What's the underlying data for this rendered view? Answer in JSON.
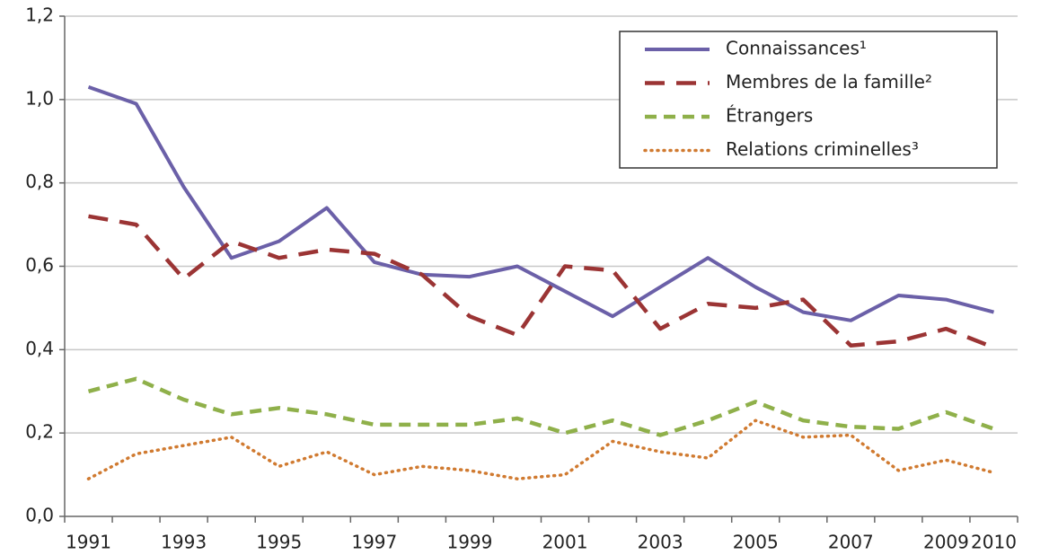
{
  "chart_data": {
    "type": "line",
    "categories": [
      "1991",
      null,
      "1993",
      null,
      "1995",
      null,
      "1997",
      null,
      "1999",
      null,
      "2001",
      null,
      "2003",
      null,
      "2005",
      null,
      "2007",
      null,
      "2009",
      "2010"
    ],
    "series": [
      {
        "name": "Connaissances¹",
        "color": "#6b60a8",
        "dash": "solid",
        "values": [
          1.03,
          0.99,
          0.79,
          0.62,
          0.66,
          0.74,
          0.61,
          0.58,
          0.575,
          0.6,
          0.54,
          0.48,
          0.55,
          0.62,
          0.55,
          0.49,
          0.47,
          0.53,
          0.52,
          0.49
        ]
      },
      {
        "name": "Membres de la famille²",
        "color": "#9b3434",
        "dash": "dashed",
        "values": [
          0.72,
          0.7,
          0.57,
          0.66,
          0.62,
          0.64,
          0.63,
          0.58,
          0.48,
          0.435,
          0.6,
          0.59,
          0.45,
          0.51,
          0.5,
          0.52,
          0.41,
          0.42,
          0.45,
          0.405
        ]
      },
      {
        "name": "Étrangers",
        "color": "#8fb04a",
        "dash": "short-dashed",
        "values": [
          0.3,
          0.33,
          0.28,
          0.245,
          0.26,
          0.245,
          0.22,
          0.22,
          0.22,
          0.235,
          0.2,
          0.23,
          0.195,
          0.23,
          0.275,
          0.23,
          0.215,
          0.21,
          0.25,
          0.21
        ]
      },
      {
        "name": "Relations criminelles³",
        "color": "#d07a30",
        "dash": "dotted",
        "values": [
          0.09,
          0.15,
          0.17,
          0.19,
          0.12,
          0.155,
          0.1,
          0.12,
          0.11,
          0.09,
          0.1,
          0.18,
          0.155,
          0.14,
          0.23,
          0.19,
          0.195,
          0.11,
          0.135,
          0.105
        ]
      }
    ],
    "ylim": [
      0,
      1.2
    ],
    "yticks": [
      {
        "value": 0,
        "label": "0,0"
      },
      {
        "value": 0.2,
        "label": "0,2"
      },
      {
        "value": 0.4,
        "label": "0,4"
      },
      {
        "value": 0.6,
        "label": "0,6"
      },
      {
        "value": 0.8,
        "label": "0,8"
      },
      {
        "value": 1,
        "label": "1,0"
      },
      {
        "value": 1.2,
        "label": "1,2"
      }
    ],
    "grid": true,
    "legend": "top-right"
  }
}
